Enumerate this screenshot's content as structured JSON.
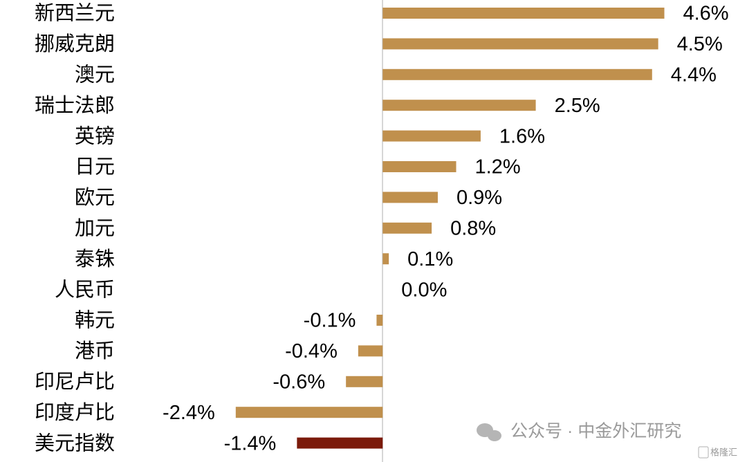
{
  "chart_data": {
    "type": "bar",
    "orientation": "horizontal",
    "categories": [
      "新西兰元",
      "挪威克朗",
      "澳元",
      "瑞士法郎",
      "英镑",
      "日元",
      "欧元",
      "加元",
      "泰铢",
      "人民币",
      "韩元",
      "港币",
      "印尼卢比",
      "印度卢比",
      "美元指数"
    ],
    "values": [
      4.6,
      4.5,
      4.4,
      2.5,
      1.6,
      1.2,
      0.9,
      0.8,
      0.1,
      0.0,
      -0.1,
      -0.4,
      -0.6,
      -2.4,
      -1.4
    ],
    "value_labels": [
      "4.6%",
      "4.5%",
      "4.4%",
      "2.5%",
      "1.6%",
      "1.2%",
      "0.9%",
      "0.8%",
      "0.1%",
      "0.0%",
      "-0.1%",
      "-0.4%",
      "-0.6%",
      "-2.4%",
      "-1.4%"
    ],
    "colors": [
      "#c0904d",
      "#c0904d",
      "#c0904d",
      "#c0904d",
      "#c0904d",
      "#c0904d",
      "#c0904d",
      "#c0904d",
      "#c0904d",
      "#c0904d",
      "#c0904d",
      "#c0904d",
      "#c0904d",
      "#c0904d",
      "#7b1a0a"
    ],
    "xlim": [
      -6.25,
      5.95
    ]
  },
  "watermark": "公众号 · 中金外汇研究",
  "logo": "格隆汇"
}
